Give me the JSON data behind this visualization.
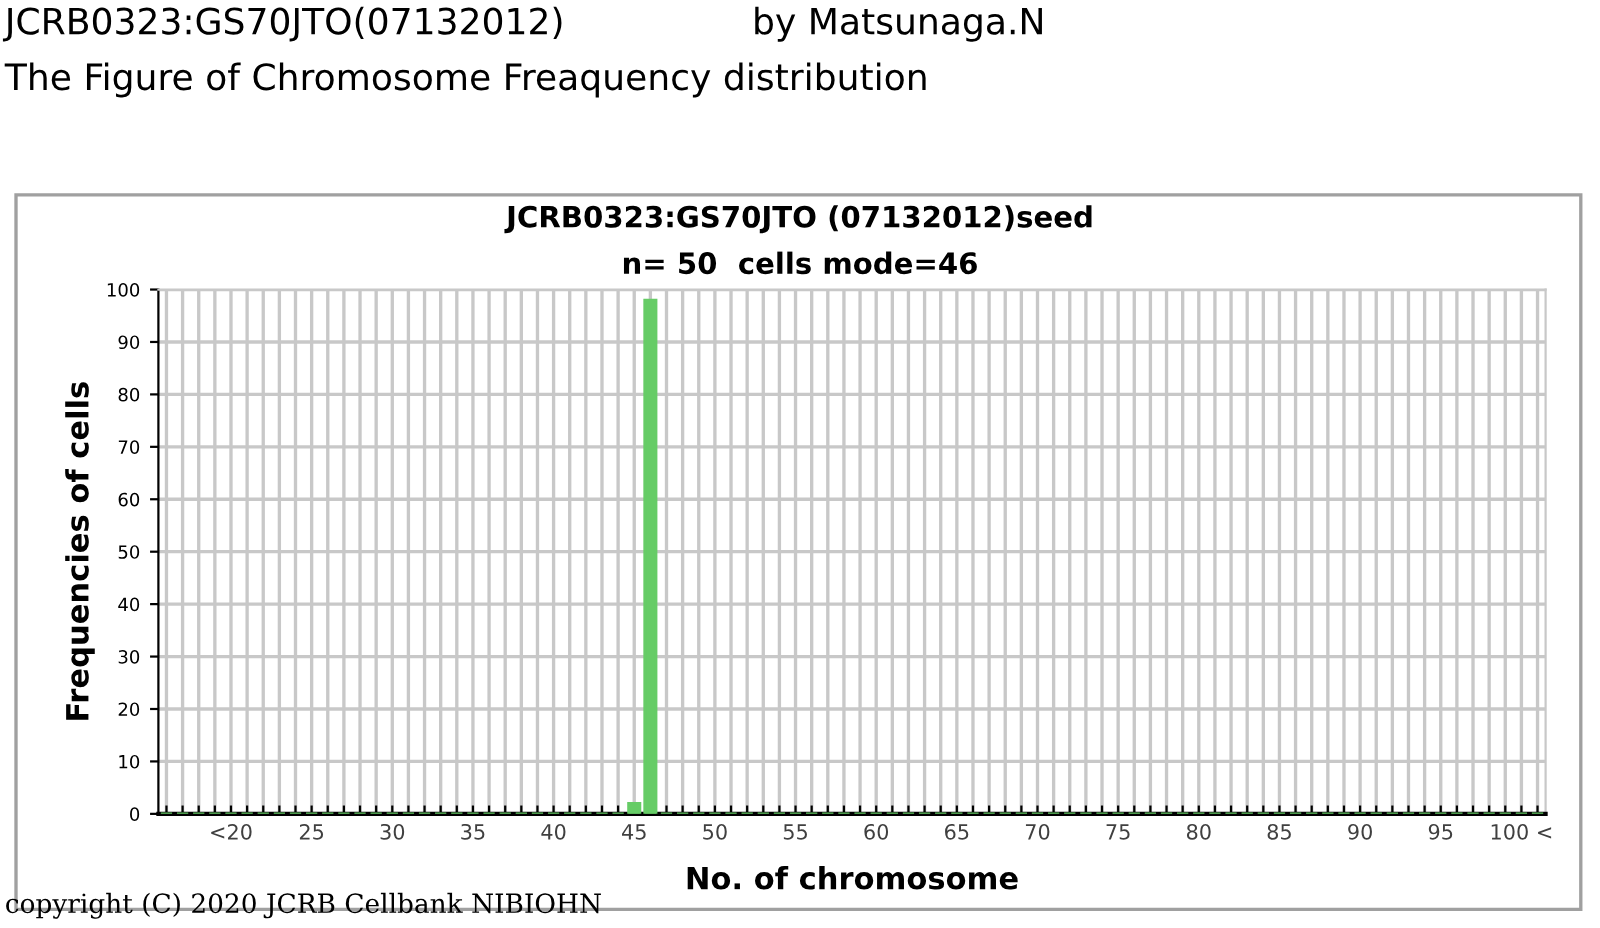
{
  "chart_data": {
    "type": "bar",
    "title": "JCRB0323:GS70JTO (07132012)seed",
    "subtitle": "n= 50  cells mode=46",
    "xlabel": "No. of chromosome",
    "ylabel": "Frequencies of cells",
    "categories": [
      null,
      null,
      null,
      null,
      "<20",
      null,
      null,
      null,
      null,
      "25",
      null,
      null,
      null,
      null,
      "30",
      null,
      null,
      null,
      null,
      "35",
      null,
      null,
      null,
      null,
      "40",
      null,
      null,
      null,
      null,
      "45",
      null,
      null,
      null,
      null,
      "50",
      null,
      null,
      null,
      null,
      "55",
      null,
      null,
      null,
      null,
      "60",
      null,
      null,
      null,
      null,
      "65",
      null,
      null,
      null,
      null,
      "70",
      null,
      null,
      null,
      null,
      "75",
      null,
      null,
      null,
      null,
      "80",
      null,
      null,
      null,
      null,
      "85",
      null,
      null,
      null,
      null,
      "90",
      null,
      null,
      null,
      null,
      "95",
      null,
      null,
      null,
      null,
      "100 <",
      null
    ],
    "values": [
      0,
      0,
      0,
      0,
      0,
      0,
      0,
      0,
      0,
      0,
      0,
      0,
      0,
      0,
      0,
      0,
      0,
      0,
      0,
      0,
      0,
      0,
      0,
      0,
      0,
      0,
      0,
      0,
      0,
      2,
      98,
      0,
      0,
      0,
      0,
      0,
      0,
      0,
      0,
      0,
      0,
      0,
      0,
      0,
      0,
      0,
      0,
      0,
      0,
      0,
      0,
      0,
      0,
      0,
      0,
      0,
      0,
      0,
      0,
      0,
      0,
      0,
      0,
      0,
      0,
      0,
      0,
      0,
      0,
      0,
      0,
      0,
      0,
      0,
      0,
      0,
      0,
      0,
      0,
      0,
      0,
      0,
      0,
      0,
      0,
      0
    ],
    "color": "#66cc66",
    "ylim": [
      0,
      100
    ],
    "yticks": [
      0,
      10,
      20,
      30,
      40,
      50,
      60,
      70,
      80,
      90,
      100
    ],
    "grid": true,
    "annotations": [
      "JCRB0323:GS70JTO(07132012)",
      "by Matsunaga.N",
      "The Figure of Chromosome Freaquency distribution",
      "copyright (C) 2020 JCRB Cellbank NIBIOHN"
    ]
  }
}
